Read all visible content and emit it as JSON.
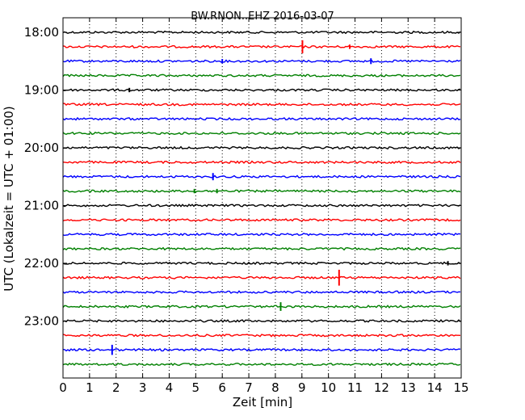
{
  "chart_data": {
    "type": "line",
    "title": "BW.RNON..EHZ 2016-03-07",
    "xlabel": "Zeit  [min]",
    "ylabel": "UTC (Lokalzeit = UTC + 01:00)",
    "xlim": [
      0,
      15
    ],
    "x_ticks": [
      "0",
      "1",
      "2",
      "3",
      "4",
      "5",
      "6",
      "7",
      "8",
      "9",
      "10",
      "11",
      "12",
      "13",
      "14",
      "15"
    ],
    "row_minutes": 15,
    "trace_start_times": [
      "18:00",
      "18:15",
      "18:30",
      "18:45",
      "19:00",
      "19:15",
      "19:30",
      "19:45",
      "20:00",
      "20:15",
      "20:30",
      "20:45",
      "21:00",
      "21:15",
      "21:30",
      "21:45",
      "22:00",
      "22:15",
      "22:30",
      "22:45",
      "23:00",
      "23:15",
      "23:30",
      "23:45"
    ],
    "y_tick_labels": [
      "18:00",
      "19:00",
      "20:00",
      "21:00",
      "22:00",
      "23:00"
    ],
    "trace_colors": [
      "#000000",
      "#ff0000",
      "#0000ff",
      "#008000"
    ],
    "grid": true,
    "grid_axis": "x",
    "events": [
      {
        "row": 1,
        "minute": 9.02,
        "amplitude": 0.45
      },
      {
        "row": 1,
        "minute": 10.8,
        "amplitude": 0.15
      },
      {
        "row": 2,
        "minute": 6.0,
        "amplitude": 0.15
      },
      {
        "row": 2,
        "minute": 11.6,
        "amplitude": 0.2
      },
      {
        "row": 4,
        "minute": 2.5,
        "amplitude": 0.15
      },
      {
        "row": 10,
        "minute": 5.65,
        "amplitude": 0.25
      },
      {
        "row": 11,
        "minute": 4.95,
        "amplitude": 0.15
      },
      {
        "row": 11,
        "minute": 5.8,
        "amplitude": 0.15
      },
      {
        "row": 16,
        "minute": 14.5,
        "amplitude": 0.15
      },
      {
        "row": 17,
        "minute": 10.4,
        "amplitude": 0.55
      },
      {
        "row": 19,
        "minute": 8.2,
        "amplitude": 0.3
      },
      {
        "row": 22,
        "minute": 1.85,
        "amplitude": 0.35
      }
    ]
  }
}
